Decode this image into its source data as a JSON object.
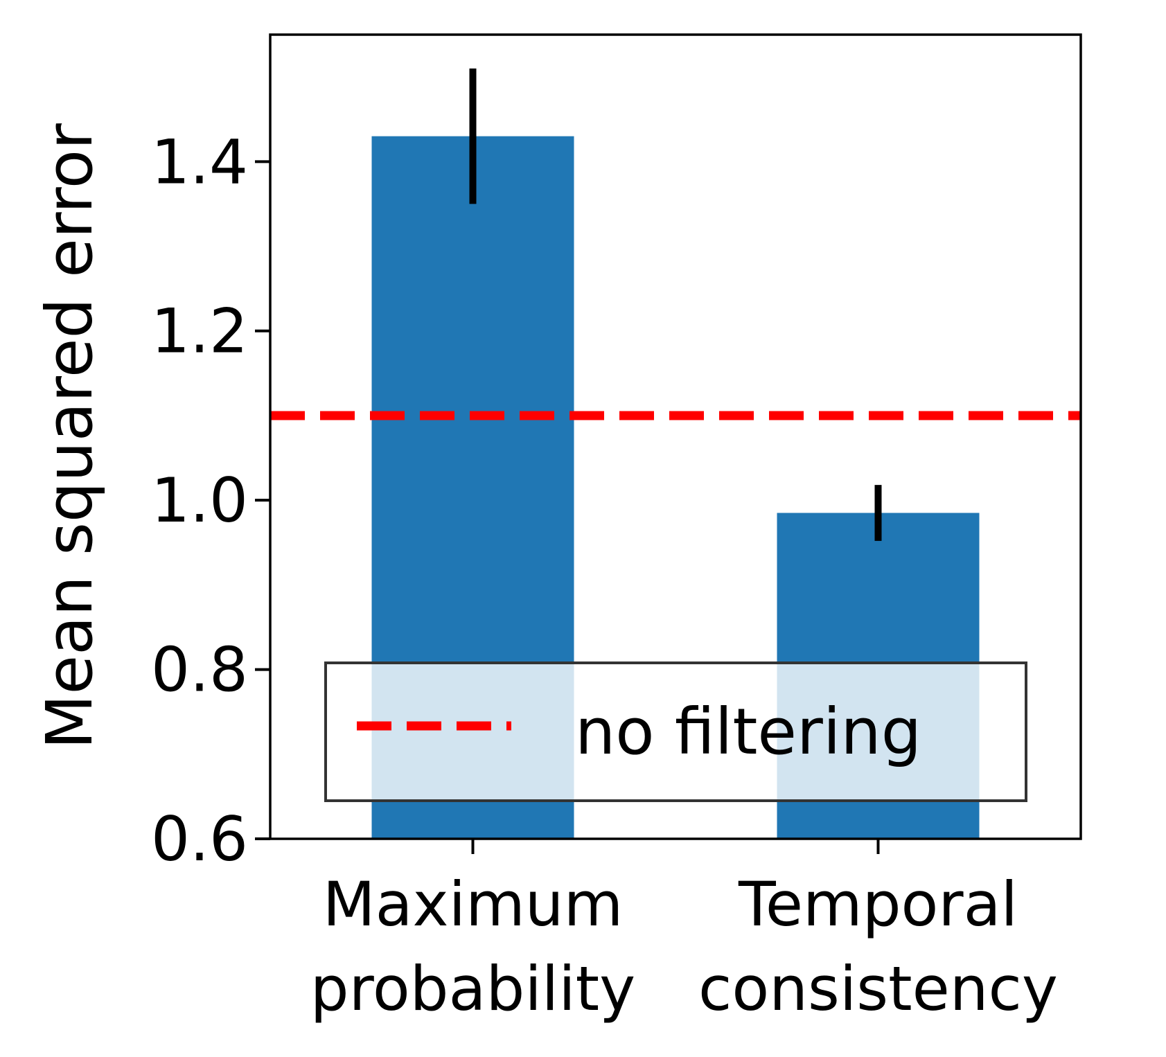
{
  "chart_data": {
    "type": "bar",
    "title": "",
    "xlabel": "",
    "ylabel": "Mean squared error",
    "ylim": [
      0.6,
      1.55
    ],
    "yticks": [
      0.6,
      0.8,
      1.0,
      1.2,
      1.4
    ],
    "ytick_labels": [
      "0.6",
      "0.8",
      "1.0",
      "1.2",
      "1.4"
    ],
    "categories": [
      [
        "Maximum",
        "probability"
      ],
      [
        "Temporal",
        "consistency"
      ]
    ],
    "values": [
      1.43,
      0.985
    ],
    "error_bars": [
      [
        1.35,
        1.51
      ],
      [
        0.952,
        1.018
      ]
    ],
    "bar_color": "#2077b4",
    "error_color": "#000000",
    "grid": false,
    "reference_line": {
      "value": 1.1,
      "style": "dashed",
      "color": "#ff0000",
      "label": "no filtering"
    },
    "legend": {
      "location": "lower-center",
      "entries": [
        "no filtering"
      ]
    }
  }
}
